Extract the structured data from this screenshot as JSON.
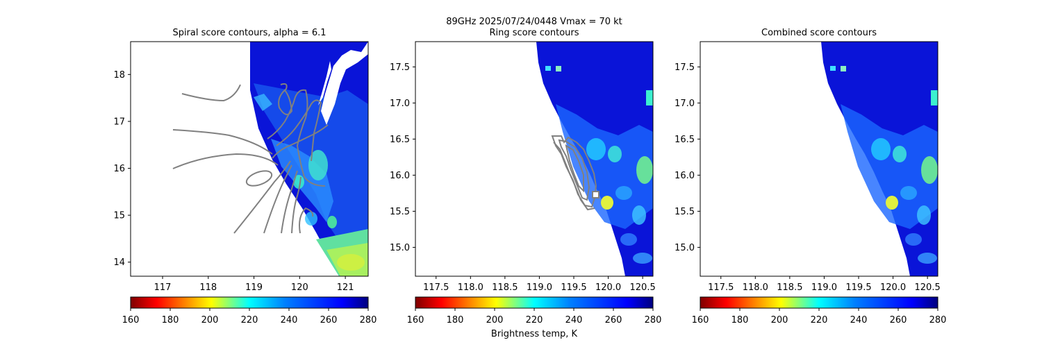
{
  "figure": {
    "suptitle_line1": "89GHz  2025/07/24/0448    Vmax = 70 kt",
    "colorbar_label": "Brightness temp, K"
  },
  "colorbar": {
    "colormap": "jet_r",
    "range": [
      160,
      280
    ],
    "ticks": [
      "160",
      "180",
      "200",
      "220",
      "240",
      "260",
      "280"
    ]
  },
  "chart_data": [
    {
      "type": "heatmap",
      "title": "Spiral score contours, alpha =  6.1",
      "xlim": [
        116.3,
        121.5
      ],
      "ylim": [
        13.7,
        18.7
      ],
      "xticks": [
        "117",
        "118",
        "119",
        "120",
        "121"
      ],
      "yticks": [
        "14",
        "15",
        "16",
        "17",
        "18"
      ],
      "variable": "89GHz brightness temperature (K)",
      "swath_west_edge": [
        [
          119.0,
          18.7
        ],
        [
          119.05,
          17.5
        ],
        [
          119.3,
          16.5
        ],
        [
          119.8,
          15.5
        ],
        [
          120.4,
          14.5
        ],
        [
          120.7,
          13.7
        ]
      ],
      "no_data_strip_east": [
        [
          121.3,
          18.7
        ],
        [
          120.7,
          17.6
        ],
        [
          120.2,
          16.8
        ]
      ],
      "warm_anomalies": [
        {
          "lon": 120.3,
          "lat": 16.0,
          "tb": 220
        },
        {
          "lon": 119.9,
          "lat": 15.8,
          "tb": 225
        },
        {
          "lon": 120.6,
          "lat": 14.8,
          "tb": 205
        },
        {
          "lon": 120.2,
          "lat": 16.3,
          "tb": 235
        }
      ],
      "overlay": "spiral score contours (grey)"
    },
    {
      "type": "heatmap",
      "title": "Ring score contours",
      "xlim": [
        117.2,
        120.65
      ],
      "ylim": [
        14.6,
        17.85
      ],
      "xticks": [
        "117.5",
        "118.0",
        "118.5",
        "119.0",
        "119.5",
        "120.0",
        "120.5"
      ],
      "yticks": [
        "15.0",
        "15.5",
        "16.0",
        "16.5",
        "17.0",
        "17.5"
      ],
      "variable": "89GHz brightness temperature (K)",
      "swath_west_edge": [
        [
          119.15,
          17.85
        ],
        [
          119.3,
          17.0
        ],
        [
          119.7,
          16.0
        ],
        [
          120.1,
          15.0
        ],
        [
          120.25,
          14.6
        ]
      ],
      "warm_anomalies": [
        {
          "lon": 120.0,
          "lat": 15.6,
          "tb": 215
        },
        {
          "lon": 120.5,
          "lat": 16.0,
          "tb": 222
        },
        {
          "lon": 119.9,
          "lat": 16.1,
          "tb": 230
        },
        {
          "lon": 120.2,
          "lat": 16.3,
          "tb": 238
        },
        {
          "lon": 119.3,
          "lat": 17.6,
          "tb": 240
        }
      ],
      "overlay": "ring score contours (grey)",
      "marker": {
        "lon": 119.8,
        "lat": 15.7,
        "shape": "square"
      }
    },
    {
      "type": "heatmap",
      "title": "Combined score contours",
      "xlim": [
        117.2,
        120.65
      ],
      "ylim": [
        14.6,
        17.85
      ],
      "xticks": [
        "117.5",
        "118.0",
        "118.5",
        "119.0",
        "119.5",
        "120.0",
        "120.5"
      ],
      "yticks": [
        "15.0",
        "15.5",
        "16.0",
        "16.5",
        "17.0",
        "17.5"
      ],
      "variable": "89GHz brightness temperature (K)",
      "swath_west_edge": [
        [
          119.15,
          17.85
        ],
        [
          119.3,
          17.0
        ],
        [
          119.7,
          16.0
        ],
        [
          120.1,
          15.0
        ],
        [
          120.25,
          14.6
        ]
      ],
      "warm_anomalies": [
        {
          "lon": 120.0,
          "lat": 15.6,
          "tb": 215
        },
        {
          "lon": 120.5,
          "lat": 16.0,
          "tb": 222
        },
        {
          "lon": 119.9,
          "lat": 16.1,
          "tb": 230
        },
        {
          "lon": 120.2,
          "lat": 16.3,
          "tb": 238
        },
        {
          "lon": 119.3,
          "lat": 17.6,
          "tb": 240
        }
      ]
    }
  ]
}
